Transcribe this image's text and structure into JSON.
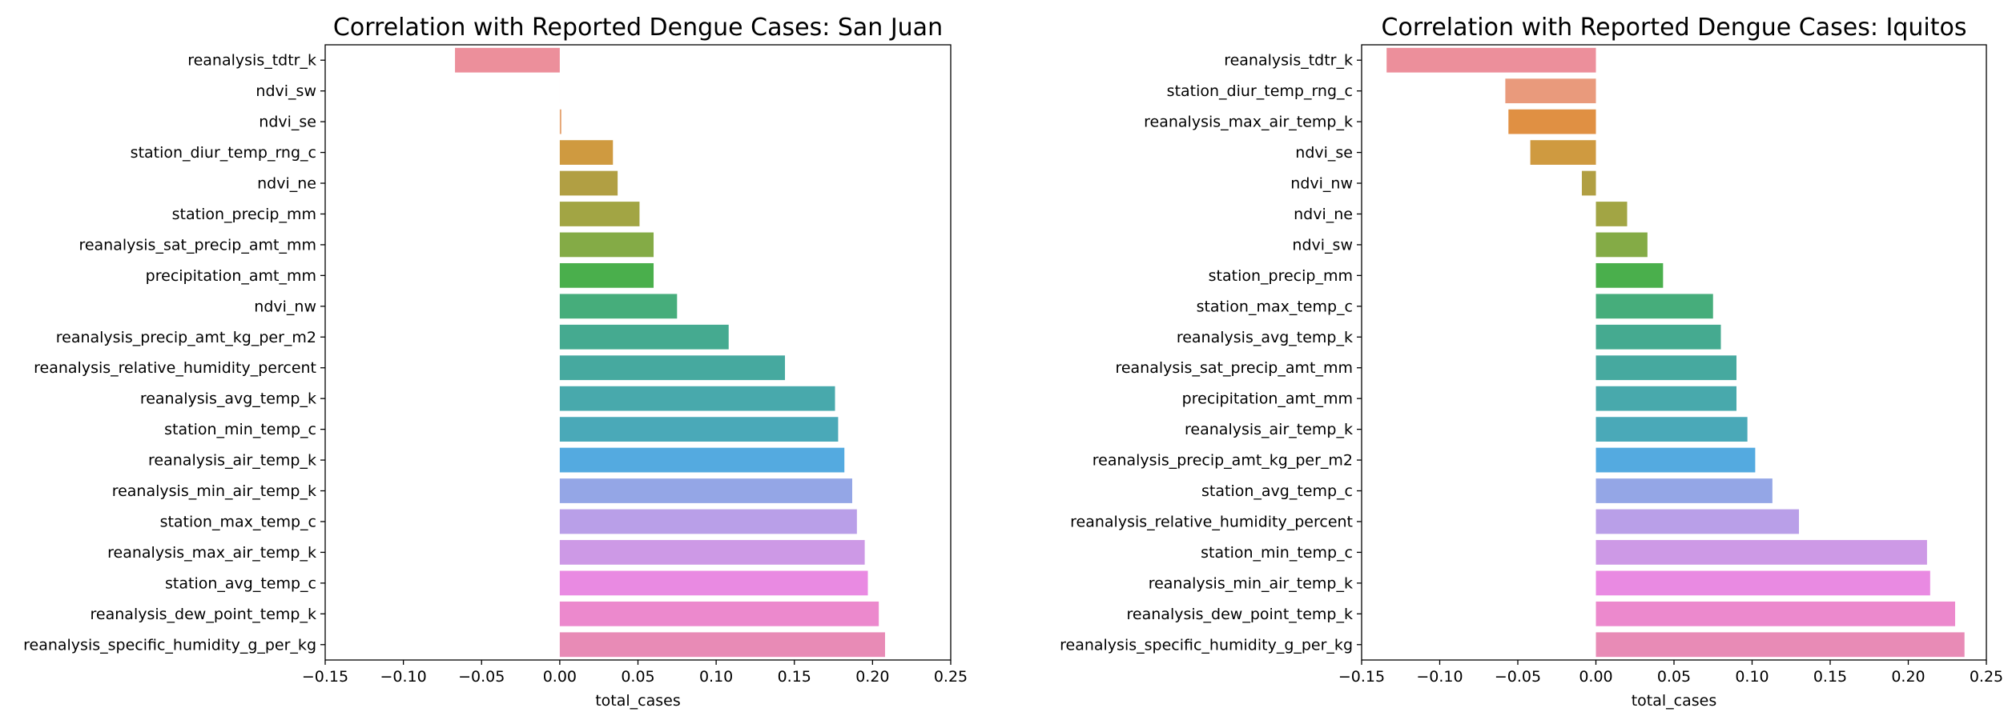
{
  "chart_data": [
    {
      "type": "bar",
      "orientation": "horizontal",
      "title": "Correlation with Reported Dengue Cases: San Juan",
      "xlabel": "total_cases",
      "ylabel": "",
      "xlim": [
        -0.15,
        0.25
      ],
      "xticks": [
        "−0.15",
        "−0.10",
        "−0.05",
        "0.00",
        "0.05",
        "0.10",
        "0.15",
        "0.20",
        "0.25"
      ],
      "categories": [
        "reanalysis_tdtr_k",
        "ndvi_sw",
        "ndvi_se",
        "station_diur_temp_rng_c",
        "ndvi_ne",
        "station_precip_mm",
        "reanalysis_sat_precip_amt_mm",
        "precipitation_amt_mm",
        "ndvi_nw",
        "reanalysis_precip_amt_kg_per_m2",
        "reanalysis_relative_humidity_percent",
        "reanalysis_avg_temp_k",
        "station_min_temp_c",
        "reanalysis_air_temp_k",
        "reanalysis_min_air_temp_k",
        "station_max_temp_c",
        "reanalysis_max_air_temp_k",
        "station_avg_temp_c",
        "reanalysis_dew_point_temp_k",
        "reanalysis_specific_humidity_g_per_kg"
      ],
      "values": [
        -0.067,
        0.0,
        0.001,
        0.034,
        0.037,
        0.051,
        0.06,
        0.06,
        0.075,
        0.108,
        0.144,
        0.176,
        0.178,
        0.182,
        0.187,
        0.19,
        0.195,
        0.197,
        0.204,
        0.208
      ],
      "colors": [
        "#ec8f9b",
        "#e99a7c",
        "#e6a472",
        "#cf9a40",
        "#b19f43",
        "#a2a544",
        "#84ab46",
        "#4aaf4c",
        "#46ad7b",
        "#45aa90",
        "#46a99f",
        "#48a9ac",
        "#4aa9b8",
        "#54aae0",
        "#94a6e6",
        "#b99fe8",
        "#cd99e6",
        "#e98ae2",
        "#ec89cd",
        "#e88bb6"
      ]
    },
    {
      "type": "bar",
      "orientation": "horizontal",
      "title": "Correlation with Reported Dengue Cases: Iquitos",
      "xlabel": "total_cases",
      "ylabel": "",
      "xlim": [
        -0.15,
        0.25
      ],
      "xticks": [
        "−0.15",
        "−0.10",
        "−0.05",
        "0.00",
        "0.05",
        "0.10",
        "0.15",
        "0.20",
        "0.25"
      ],
      "categories": [
        "reanalysis_tdtr_k",
        "station_diur_temp_rng_c",
        "reanalysis_max_air_temp_k",
        "ndvi_se",
        "ndvi_nw",
        "ndvi_ne",
        "ndvi_sw",
        "station_precip_mm",
        "station_max_temp_c",
        "reanalysis_avg_temp_k",
        "reanalysis_sat_precip_amt_mm",
        "precipitation_amt_mm",
        "reanalysis_air_temp_k",
        "reanalysis_precip_amt_kg_per_m2",
        "station_avg_temp_c",
        "reanalysis_relative_humidity_percent",
        "station_min_temp_c",
        "reanalysis_min_air_temp_k",
        "reanalysis_dew_point_temp_k",
        "reanalysis_specific_humidity_g_per_kg"
      ],
      "values": [
        -0.134,
        -0.058,
        -0.056,
        -0.042,
        -0.009,
        0.02,
        0.033,
        0.043,
        0.075,
        0.08,
        0.09,
        0.09,
        0.097,
        0.102,
        0.113,
        0.13,
        0.212,
        0.214,
        0.23,
        0.236
      ],
      "colors": [
        "#ec8f9b",
        "#e99a7c",
        "#e09043",
        "#cf9a40",
        "#b19f43",
        "#a2a544",
        "#84ab46",
        "#4aaf4c",
        "#46ad7b",
        "#45aa90",
        "#46a99f",
        "#48a9ac",
        "#4aa9b8",
        "#54aae0",
        "#94a6e6",
        "#b99fe8",
        "#cd99e6",
        "#e98ae2",
        "#ec89cd",
        "#e88bb6"
      ]
    }
  ]
}
